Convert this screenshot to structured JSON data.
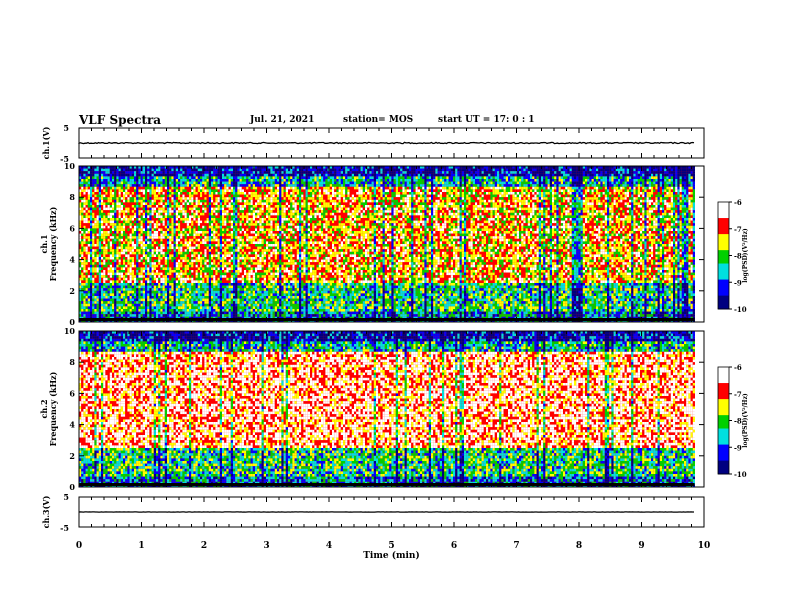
{
  "header": {
    "title": "VLF Spectra",
    "date": "Jul. 21, 2021",
    "station": "station= MOS",
    "start_time": "start UT = 17: 0 : 1"
  },
  "chart_data": [
    {
      "id": "ch1-waveform",
      "type": "line",
      "ylabel": "ch.1(V)",
      "ylim": [
        -5,
        5
      ],
      "yticks": [
        "5",
        "-5"
      ],
      "xlim": [
        0,
        10
      ],
      "baseline": 0
    },
    {
      "id": "ch1-spectrogram",
      "type": "heatmap",
      "ylabel": [
        "ch.1",
        "Frequency (kHz)"
      ],
      "ylim": [
        0,
        10
      ],
      "yticks": [
        "0",
        "2",
        "4",
        "6",
        "8",
        "10"
      ],
      "xlim": [
        0,
        10
      ],
      "data_xmax": 9.85,
      "colorbar": {
        "label": "log(PSD)(V²/Hz)",
        "range": [
          -10,
          -6
        ],
        "ticks": [
          "-6",
          "-7",
          "-8",
          "-9",
          "-10"
        ]
      }
    },
    {
      "id": "ch2-spectrogram",
      "type": "heatmap",
      "ylabel": [
        "ch.2",
        "Frequency (kHz)"
      ],
      "ylim": [
        0,
        10
      ],
      "yticks": [
        "0",
        "2",
        "4",
        "6",
        "8",
        "10"
      ],
      "xlim": [
        0,
        10
      ],
      "data_xmax": 9.85,
      "colorbar": {
        "label": "log(PSD)(V²/Hz)",
        "range": [
          -10,
          -6
        ],
        "ticks": [
          "-6",
          "-7",
          "-8",
          "-9",
          "-10"
        ]
      }
    },
    {
      "id": "ch3-waveform",
      "type": "line",
      "ylabel": "ch.3(V)",
      "ylim": [
        -5,
        5
      ],
      "yticks": [
        "5",
        "-5"
      ],
      "xlim": [
        0,
        10
      ],
      "baseline": 0
    }
  ],
  "x_axis": {
    "label": "Time (min)",
    "ticks": [
      "0",
      "1",
      "2",
      "3",
      "4",
      "5",
      "6",
      "7",
      "8",
      "9",
      "10"
    ]
  },
  "colors": {
    "low": "#000080",
    "blue": "#0000ff",
    "cyan": "#00e0e0",
    "green": "#00d000",
    "yellow": "#ffff00",
    "red": "#ff0000",
    "high": "#ffffff"
  }
}
